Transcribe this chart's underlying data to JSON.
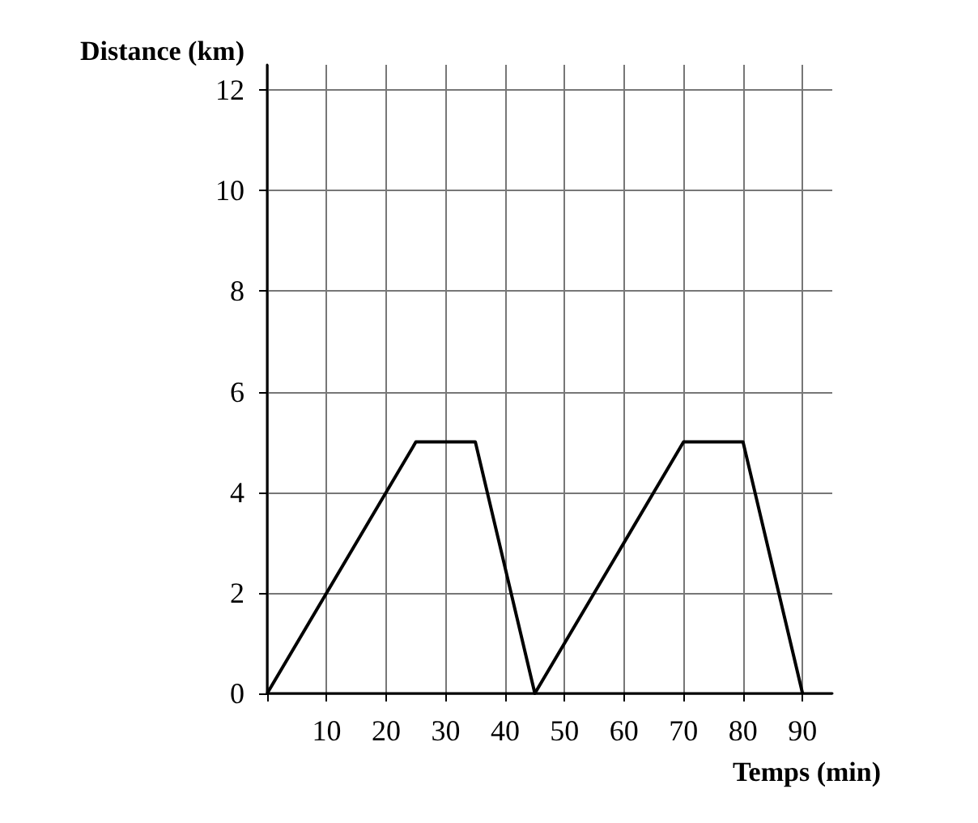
{
  "chart_data": {
    "type": "line",
    "xlabel": "Temps (min)",
    "ylabel": "Distance (km)",
    "x": [
      0,
      25,
      35,
      45,
      70,
      80,
      90
    ],
    "series": [
      {
        "color": "#000000",
        "values": [
          0,
          5,
          5,
          0,
          5,
          5,
          0
        ]
      }
    ],
    "xlim": [
      0,
      95
    ],
    "ylim": [
      0,
      12.5
    ],
    "xticks": [
      {
        "value": 0,
        "label": null
      },
      10,
      20,
      30,
      40,
      50,
      60,
      70,
      80,
      90
    ],
    "yticks": [
      0,
      2,
      4,
      6,
      8,
      10,
      12
    ],
    "grid": true,
    "marker": "none",
    "line_style": "solid"
  }
}
